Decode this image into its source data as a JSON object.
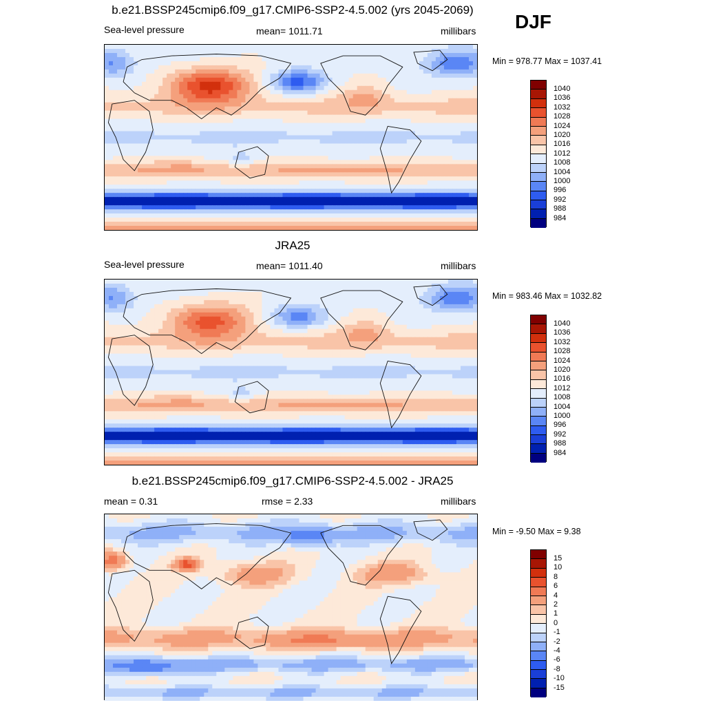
{
  "season": "DJF",
  "colors": {
    "abs": [
      "#000080",
      "#0020b0",
      "#1a3fd8",
      "#2e5cf0",
      "#5a86f5",
      "#8fb0f8",
      "#bcd2fa",
      "#e4eefc",
      "#fde9d9",
      "#f9c4a8",
      "#f4a07c",
      "#f07a55",
      "#e9522e",
      "#d2300d",
      "#a81604",
      "#800000"
    ],
    "diff": [
      "#000080",
      "#0020b0",
      "#1a3fd8",
      "#2e5cf0",
      "#5a86f5",
      "#8fb0f8",
      "#bcd2fa",
      "#e4eefc",
      "#fde9d9",
      "#f9c4a8",
      "#f4a07c",
      "#f07a55",
      "#e9522e",
      "#d2300d",
      "#a81604",
      "#800000"
    ]
  },
  "panels": [
    {
      "title": "b.e21.BSSP245cmip6.f09_g17.CMIP6-SSP2-4.5.002 (yrs 2045-2069)",
      "left_label": "Sea-level pressure",
      "center_label": "mean= 1011.71",
      "units": "millibars",
      "minmax": "Min = 978.77 Max = 1037.41",
      "field_kind": "model",
      "colorbar_labels": [
        "1040",
        "1036",
        "1032",
        "1028",
        "1024",
        "1020",
        "1016",
        "1012",
        "1008",
        "1004",
        "1000",
        "996",
        "992",
        "988",
        "984"
      ]
    },
    {
      "title": "JRA25",
      "left_label": "Sea-level pressure",
      "center_label": "mean= 1011.40",
      "units": "millibars",
      "minmax": "Min = 983.46 Max = 1032.82",
      "field_kind": "obs",
      "colorbar_labels": [
        "1040",
        "1036",
        "1032",
        "1028",
        "1024",
        "1020",
        "1016",
        "1012",
        "1008",
        "1004",
        "1000",
        "996",
        "992",
        "988",
        "984"
      ]
    },
    {
      "title": "b.e21.BSSP245cmip6.f09_g17.CMIP6-SSP2-4.5.002 - JRA25",
      "left_label": "mean =   0.31",
      "center_label": "rmse =   2.33",
      "units": "millibars",
      "minmax": "Min =  -9.50 Max =   9.38",
      "field_kind": "diff",
      "colorbar_labels": [
        "15",
        "10",
        "8",
        "6",
        "4",
        "2",
        "1",
        "0",
        "-1",
        "-2",
        "-4",
        "-6",
        "-8",
        "-10",
        "-15"
      ]
    }
  ],
  "chart_data": [
    {
      "type": "heatmap",
      "title": "b.e21.BSSP245cmip6.f09_g17.CMIP6-SSP2-4.5.002 (yrs 2045-2069)",
      "variable": "Sea-level pressure",
      "units": "millibars",
      "mean": 1011.71,
      "min": 978.77,
      "max": 1037.41,
      "contour_levels": [
        984,
        988,
        992,
        996,
        1000,
        1004,
        1008,
        1012,
        1016,
        1020,
        1024,
        1028,
        1032,
        1036,
        1040
      ]
    },
    {
      "type": "heatmap",
      "title": "JRA25",
      "variable": "Sea-level pressure",
      "units": "millibars",
      "mean": 1011.4,
      "min": 983.46,
      "max": 1032.82,
      "contour_levels": [
        984,
        988,
        992,
        996,
        1000,
        1004,
        1008,
        1012,
        1016,
        1020,
        1024,
        1028,
        1032,
        1036,
        1040
      ]
    },
    {
      "type": "heatmap",
      "title": "b.e21.BSSP245cmip6.f09_g17.CMIP6-SSP2-4.5.002 - JRA25",
      "units": "millibars",
      "mean": 0.31,
      "rmse": 2.33,
      "min": -9.5,
      "max": 9.38,
      "contour_levels": [
        -15,
        -10,
        -8,
        -6,
        -4,
        -2,
        -1,
        0,
        1,
        2,
        4,
        6,
        8,
        10,
        15
      ]
    }
  ]
}
